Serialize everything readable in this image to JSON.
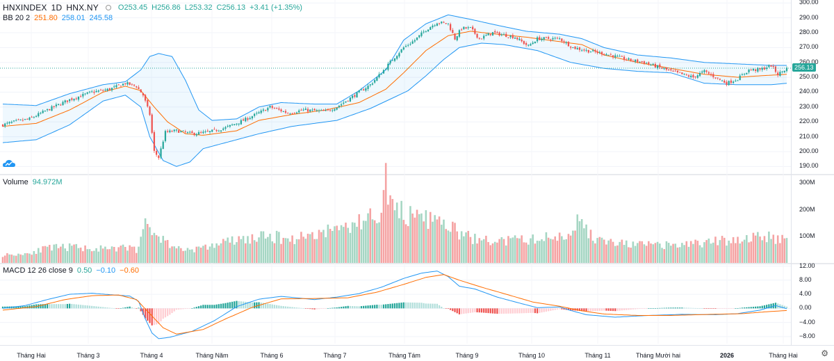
{
  "header": {
    "symbol": "HNXINDEX",
    "interval": "1D",
    "exchange": "HNX.NY",
    "ohlc": {
      "O": "O253.45",
      "H": "H256.86",
      "L": "L253.32",
      "C": "C256.13",
      "chg": "+3.41 (+1.35%)"
    }
  },
  "bb_legend": {
    "label": "BB 20 2",
    "basis": "251.80",
    "upper": "258.01",
    "lower": "245.58"
  },
  "volume_legend": {
    "label": "Volume",
    "value": "94.972M"
  },
  "macd_legend": {
    "label": "MACD 12 26 close 9",
    "hist": "0.50",
    "macd": "−0.10",
    "signal": "−0.60"
  },
  "price_axis": [
    "300.00",
    "290.00",
    "280.00",
    "270.00",
    "260.00",
    "250.00",
    "240.00",
    "230.00",
    "220.00",
    "210.00",
    "200.00",
    "190.00"
  ],
  "last_price": "256.13",
  "volume_axis": [
    "300M",
    "200M",
    "100M"
  ],
  "macd_axis": [
    "12.00",
    "8.00",
    "4.00",
    "0.00",
    "−4.00",
    "−8.00"
  ],
  "x_axis": [
    "Tháng Hai",
    "Tháng 3",
    "Tháng 4",
    "Tháng Năm",
    "Tháng 6",
    "Tháng 7",
    "Tháng Tám",
    "Tháng 9",
    "Tháng 10",
    "Tháng 11",
    "Tháng Mười hai",
    "2026",
    "Tháng Hai"
  ],
  "colors": {
    "up": "#26a69a",
    "down": "#ef5350",
    "vol_up": "#a5d6c3",
    "vol_down": "#f5a3a3",
    "bb_band": "#2196f3",
    "bb_basis": "#ff6d00",
    "macd": "#2196f3",
    "signal": "#ff6d00"
  },
  "chart_data": {
    "type": "candlestick",
    "series_keypoints": {
      "close": [
        [
          0,
          218
        ],
        [
          5,
          220
        ],
        [
          12,
          222
        ],
        [
          20,
          228
        ],
        [
          30,
          235
        ],
        [
          40,
          240
        ],
        [
          48,
          242
        ],
        [
          55,
          246
        ],
        [
          60,
          244
        ],
        [
          63,
          238
        ],
        [
          66,
          225
        ],
        [
          68,
          200
        ],
        [
          70,
          196
        ],
        [
          73,
          213
        ],
        [
          78,
          214
        ],
        [
          85,
          212
        ],
        [
          92,
          213
        ],
        [
          100,
          216
        ],
        [
          108,
          221
        ],
        [
          115,
          226
        ],
        [
          120,
          230
        ],
        [
          128,
          226
        ],
        [
          135,
          228
        ],
        [
          145,
          227
        ],
        [
          150,
          230
        ],
        [
          158,
          238
        ],
        [
          165,
          245
        ],
        [
          170,
          253
        ],
        [
          175,
          262
        ],
        [
          180,
          270
        ],
        [
          185,
          275
        ],
        [
          190,
          282
        ],
        [
          195,
          287
        ],
        [
          200,
          286
        ],
        [
          203,
          276
        ],
        [
          206,
          283
        ],
        [
          210,
          283
        ],
        [
          214,
          276
        ],
        [
          220,
          280
        ],
        [
          230,
          277
        ],
        [
          236,
          271
        ],
        [
          240,
          276
        ],
        [
          250,
          276
        ],
        [
          256,
          270
        ],
        [
          262,
          268
        ],
        [
          270,
          266
        ],
        [
          280,
          262
        ],
        [
          288,
          260
        ],
        [
          294,
          257
        ],
        [
          300,
          254
        ],
        [
          305,
          252
        ],
        [
          310,
          250
        ],
        [
          315,
          254
        ],
        [
          320,
          250
        ],
        [
          325,
          246
        ],
        [
          330,
          249
        ],
        [
          335,
          255
        ],
        [
          340,
          255
        ],
        [
          345,
          258
        ],
        [
          348,
          252
        ],
        [
          352,
          256
        ]
      ],
      "bb_upper": [
        [
          0,
          232
        ],
        [
          15,
          231
        ],
        [
          30,
          239
        ],
        [
          45,
          245
        ],
        [
          55,
          247
        ],
        [
          62,
          255
        ],
        [
          66,
          264
        ],
        [
          70,
          266
        ],
        [
          76,
          264
        ],
        [
          82,
          248
        ],
        [
          88,
          228
        ],
        [
          94,
          221
        ],
        [
          105,
          222
        ],
        [
          115,
          230
        ],
        [
          125,
          233
        ],
        [
          140,
          232
        ],
        [
          150,
          232
        ],
        [
          160,
          241
        ],
        [
          172,
          255
        ],
        [
          180,
          275
        ],
        [
          190,
          286
        ],
        [
          200,
          292
        ],
        [
          210,
          289
        ],
        [
          222,
          285
        ],
        [
          235,
          281
        ],
        [
          250,
          279
        ],
        [
          260,
          276
        ],
        [
          270,
          270
        ],
        [
          285,
          265
        ],
        [
          300,
          263
        ],
        [
          315,
          260
        ],
        [
          330,
          259
        ],
        [
          345,
          258
        ],
        [
          352,
          258
        ]
      ],
      "bb_basis": [
        [
          0,
          217
        ],
        [
          15,
          219
        ],
        [
          30,
          228
        ],
        [
          45,
          240
        ],
        [
          55,
          244
        ],
        [
          62,
          241
        ],
        [
          68,
          230
        ],
        [
          74,
          220
        ],
        [
          82,
          212
        ],
        [
          90,
          211
        ],
        [
          105,
          214
        ],
        [
          115,
          221
        ],
        [
          130,
          225
        ],
        [
          145,
          228
        ],
        [
          160,
          233
        ],
        [
          172,
          242
        ],
        [
          180,
          253
        ],
        [
          190,
          268
        ],
        [
          200,
          278
        ],
        [
          210,
          281
        ],
        [
          222,
          279
        ],
        [
          235,
          277
        ],
        [
          250,
          274
        ],
        [
          260,
          272
        ],
        [
          270,
          265
        ],
        [
          285,
          260
        ],
        [
          300,
          256
        ],
        [
          315,
          252
        ],
        [
          330,
          250
        ],
        [
          340,
          251
        ],
        [
          352,
          252
        ]
      ],
      "bb_lower": [
        [
          0,
          206
        ],
        [
          15,
          208
        ],
        [
          30,
          218
        ],
        [
          45,
          234
        ],
        [
          55,
          238
        ],
        [
          62,
          230
        ],
        [
          66,
          210
        ],
        [
          72,
          194
        ],
        [
          78,
          190
        ],
        [
          84,
          193
        ],
        [
          90,
          202
        ],
        [
          100,
          206
        ],
        [
          115,
          212
        ],
        [
          130,
          217
        ],
        [
          150,
          221
        ],
        [
          165,
          229
        ],
        [
          175,
          236
        ],
        [
          182,
          241
        ],
        [
          190,
          251
        ],
        [
          198,
          262
        ],
        [
          205,
          270
        ],
        [
          215,
          273
        ],
        [
          225,
          272
        ],
        [
          240,
          268
        ],
        [
          255,
          260
        ],
        [
          270,
          256
        ],
        [
          285,
          254
        ],
        [
          300,
          253
        ],
        [
          315,
          246
        ],
        [
          330,
          245
        ],
        [
          345,
          245
        ],
        [
          352,
          246
        ]
      ],
      "volume_M": [
        [
          0,
          30
        ],
        [
          10,
          35
        ],
        [
          20,
          55
        ],
        [
          30,
          60
        ],
        [
          40,
          55
        ],
        [
          50,
          50
        ],
        [
          55,
          60
        ],
        [
          60,
          50
        ],
        [
          63,
          140
        ],
        [
          65,
          130
        ],
        [
          67,
          120
        ],
        [
          70,
          100
        ],
        [
          75,
          70
        ],
        [
          80,
          50
        ],
        [
          90,
          55
        ],
        [
          100,
          80
        ],
        [
          110,
          90
        ],
        [
          120,
          100
        ],
        [
          130,
          90
        ],
        [
          140,
          110
        ],
        [
          150,
          130
        ],
        [
          155,
          140
        ],
        [
          160,
          150
        ],
        [
          165,
          175
        ],
        [
          170,
          200
        ],
        [
          172,
          310
        ],
        [
          175,
          220
        ],
        [
          178,
          180
        ],
        [
          180,
          200
        ],
        [
          185,
          160
        ],
        [
          190,
          165
        ],
        [
          195,
          155
        ],
        [
          200,
          140
        ],
        [
          205,
          110
        ],
        [
          210,
          95
        ],
        [
          215,
          85
        ],
        [
          220,
          80
        ],
        [
          230,
          85
        ],
        [
          240,
          90
        ],
        [
          250,
          100
        ],
        [
          255,
          110
        ],
        [
          258,
          180
        ],
        [
          260,
          140
        ],
        [
          265,
          95
        ],
        [
          270,
          80
        ],
        [
          280,
          70
        ],
        [
          300,
          65
        ],
        [
          320,
          80
        ],
        [
          330,
          90
        ],
        [
          340,
          100
        ],
        [
          345,
          95
        ],
        [
          352,
          94.972
        ]
      ],
      "macd": [
        [
          0,
          0
        ],
        [
          10,
          0.8
        ],
        [
          20,
          2.5
        ],
        [
          30,
          4.0
        ],
        [
          40,
          4.3
        ],
        [
          50,
          3.8
        ],
        [
          57,
          3.5
        ],
        [
          61,
          2.0
        ],
        [
          64,
          -3.0
        ],
        [
          67,
          -7.0
        ],
        [
          70,
          -8.6
        ],
        [
          75,
          -8.2
        ],
        [
          85,
          -6.5
        ],
        [
          95,
          -3.5
        ],
        [
          105,
          0.5
        ],
        [
          115,
          2.6
        ],
        [
          125,
          3.4
        ],
        [
          140,
          2.5
        ],
        [
          150,
          3.2
        ],
        [
          160,
          4.2
        ],
        [
          170,
          6.0
        ],
        [
          180,
          8.5
        ],
        [
          188,
          10.0
        ],
        [
          195,
          10.6
        ],
        [
          200,
          9.0
        ],
        [
          205,
          6.3
        ],
        [
          212,
          5.5
        ],
        [
          222,
          3.2
        ],
        [
          232,
          1.5
        ],
        [
          240,
          0.2
        ],
        [
          250,
          0.4
        ],
        [
          255,
          -0.6
        ],
        [
          262,
          -1.8
        ],
        [
          275,
          -2.5
        ],
        [
          290,
          -2.0
        ],
        [
          305,
          -1.7
        ],
        [
          320,
          -1.8
        ],
        [
          330,
          -1.5
        ],
        [
          340,
          -0.5
        ],
        [
          347,
          0.8
        ],
        [
          352,
          -0.1
        ]
      ],
      "signal": [
        [
          0,
          -0.5
        ],
        [
          15,
          0.5
        ],
        [
          28,
          2.5
        ],
        [
          40,
          3.6
        ],
        [
          52,
          3.8
        ],
        [
          60,
          2.5
        ],
        [
          66,
          -1.5
        ],
        [
          72,
          -5.5
        ],
        [
          78,
          -7.3
        ],
        [
          90,
          -6.0
        ],
        [
          100,
          -3.0
        ],
        [
          112,
          0.3
        ],
        [
          125,
          2.7
        ],
        [
          140,
          2.8
        ],
        [
          155,
          3.0
        ],
        [
          168,
          4.6
        ],
        [
          180,
          6.8
        ],
        [
          190,
          8.8
        ],
        [
          198,
          9.6
        ],
        [
          205,
          8.0
        ],
        [
          215,
          6.0
        ],
        [
          225,
          4.2
        ],
        [
          238,
          1.8
        ],
        [
          250,
          0.6
        ],
        [
          260,
          -0.7
        ],
        [
          270,
          -1.6
        ],
        [
          285,
          -2.0
        ],
        [
          300,
          -2.0
        ],
        [
          318,
          -1.7
        ],
        [
          332,
          -1.5
        ],
        [
          342,
          -1.0
        ],
        [
          352,
          -0.6
        ]
      ]
    },
    "y_range_price": [
      185,
      302
    ],
    "y_range_volume": [
      0,
      330
    ],
    "y_range_macd": [
      -10,
      12.5
    ],
    "grid": true
  }
}
